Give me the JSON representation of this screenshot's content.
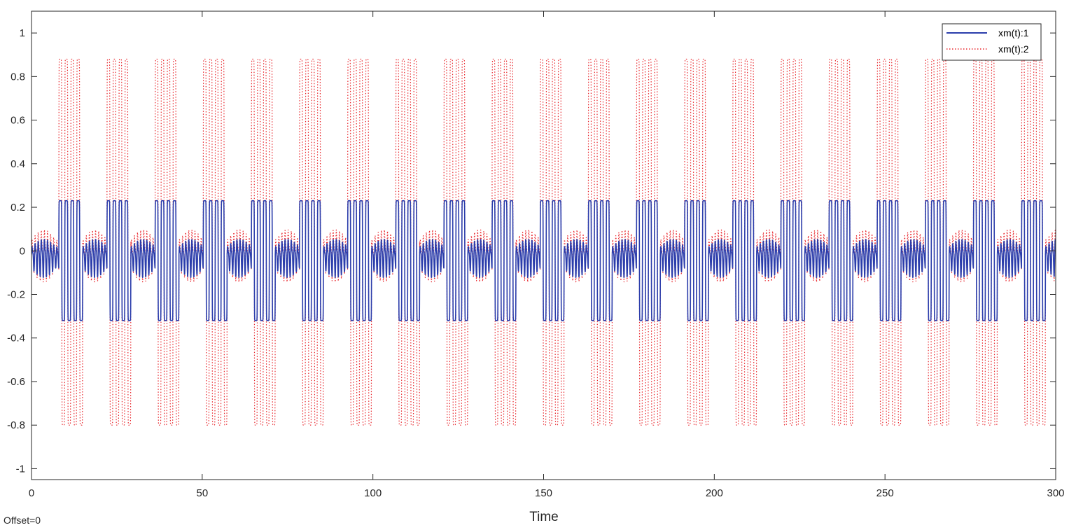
{
  "chart_data": {
    "type": "line",
    "title": "",
    "xlabel": "Time",
    "ylabel": "",
    "xlim": [
      0,
      300
    ],
    "ylim": [
      -1.05,
      1.1
    ],
    "x_ticks": [
      0,
      50,
      100,
      150,
      200,
      250,
      300
    ],
    "y_ticks": [
      -1,
      -0.8,
      -0.6,
      -0.4,
      -0.2,
      0,
      0.2,
      0.4,
      0.6,
      0.8,
      1
    ],
    "y_tick_labels": [
      "-1",
      "-0.8",
      "-0.6",
      "-0.4",
      "-0.2",
      "0",
      "0.2",
      "0.4",
      "0.6",
      "0.8",
      "1"
    ],
    "x_tick_labels": [
      "0",
      "50",
      "100",
      "150",
      "200",
      "250",
      "300"
    ],
    "grid": false,
    "legend_position": "top-right",
    "footnote": "Offset=0",
    "period": 14.1,
    "burst_start": 8,
    "burst_length": 7,
    "series": [
      {
        "name": "xm(t):1",
        "color": "#2b3dab",
        "style": "solid",
        "burst_max": 0.23,
        "burst_min": -0.32,
        "quiet_max": 0.07,
        "quiet_min": -0.12
      },
      {
        "name": "xm(t):2",
        "color": "#e8242a",
        "style": "dotted",
        "burst_max": 0.88,
        "burst_min": -0.8,
        "quiet_max": 0.12,
        "quiet_min": -0.14
      }
    ]
  }
}
